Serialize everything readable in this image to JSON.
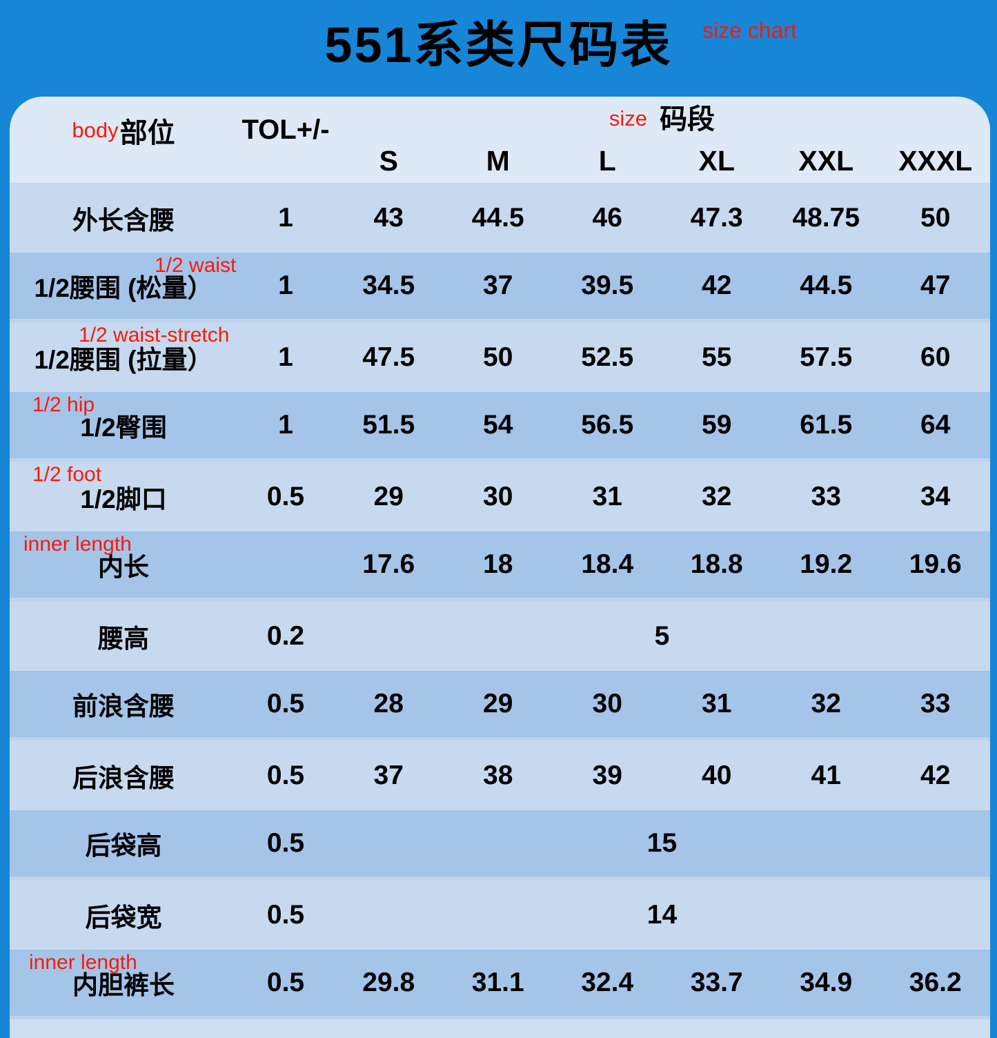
{
  "title": "551系类尺码表",
  "annotations": {
    "title": "size chart",
    "body": "body",
    "size": "size"
  },
  "header": {
    "body_label": "部位",
    "tol_label": "TOL+/-",
    "size_label": "码段",
    "sizes": [
      "S",
      "M",
      "L",
      "XL",
      "XXL",
      "XXXL"
    ]
  },
  "chart_data": {
    "type": "table",
    "title": "551系类尺码表",
    "columns": [
      "部位",
      "TOL+/-",
      "S",
      "M",
      "L",
      "XL",
      "XXL",
      "XXXL"
    ],
    "rows": [
      {
        "label": "外长含腰",
        "tol": "1",
        "values": [
          "43",
          "44.5",
          "46",
          "47.3",
          "48.75",
          "50"
        ]
      },
      {
        "label": "1/2腰围 (松量）",
        "annotation": "1/2 waist",
        "tol": "1",
        "values": [
          "34.5",
          "37",
          "39.5",
          "42",
          "44.5",
          "47"
        ]
      },
      {
        "label": "1/2腰围 (拉量）",
        "annotation": "1/2 waist-stretch",
        "tol": "1",
        "values": [
          "47.5",
          "50",
          "52.5",
          "55",
          "57.5",
          "60"
        ]
      },
      {
        "label": "1/2臀围",
        "annotation": "1/2 hip",
        "tol": "1",
        "values": [
          "51.5",
          "54",
          "56.5",
          "59",
          "61.5",
          "64"
        ]
      },
      {
        "label": "1/2脚口",
        "annotation": "1/2 foot",
        "tol": "0.5",
        "values": [
          "29",
          "30",
          "31",
          "32",
          "33",
          "34"
        ]
      },
      {
        "label": "内长",
        "annotation": "inner length",
        "tol": "",
        "values": [
          "17.6",
          "18",
          "18.4",
          "18.8",
          "19.2",
          "19.6"
        ]
      },
      {
        "label": "腰高",
        "tol": "0.2",
        "merged": "5"
      },
      {
        "label": "前浪含腰",
        "tol": "0.5",
        "values": [
          "28",
          "29",
          "30",
          "31",
          "32",
          "33"
        ]
      },
      {
        "label": "后浪含腰",
        "tol": "0.5",
        "values": [
          "37",
          "38",
          "39",
          "40",
          "41",
          "42"
        ]
      },
      {
        "label": "后袋高",
        "tol": "0.5",
        "merged": "15"
      },
      {
        "label": "后袋宽",
        "tol": "0.5",
        "merged": "14"
      },
      {
        "label": "内胆裤长",
        "annotation": "inner length",
        "tol": "0.5",
        "values": [
          "29.8",
          "31.1",
          "32.4",
          "33.7",
          "34.9",
          "36.2"
        ]
      }
    ]
  },
  "colors": {
    "background": "#1786d6",
    "header_bg": "#dde9f6",
    "row_light": "#c6d9ef",
    "row_dark": "#a4c4e8",
    "annotation_red": "#f71b0a",
    "text": "#000000"
  }
}
